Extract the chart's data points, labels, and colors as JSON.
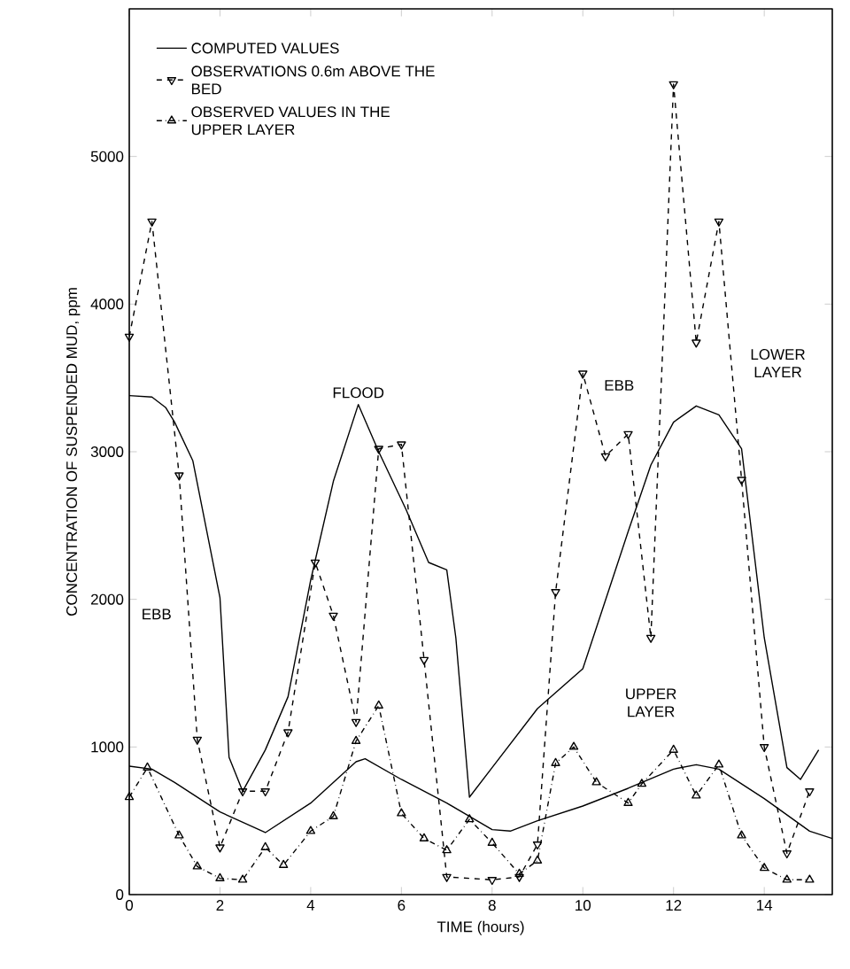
{
  "chart_data": {
    "type": "line",
    "xlabel": "TIME (hours)",
    "ylabel": "CONCENTRATION OF SUSPENDED MUD, ppm",
    "xlim": [
      0,
      15.5
    ],
    "ylim": [
      0,
      6000
    ],
    "xticks": [
      0,
      2,
      4,
      6,
      8,
      10,
      12,
      14
    ],
    "yticks": [
      0,
      1000,
      2000,
      3000,
      4000,
      5000
    ],
    "grid": false,
    "legend": "top left",
    "series": [
      {
        "name": "COMPUTED VALUES",
        "color": "#000000",
        "line_style": "solid",
        "marker": "none",
        "x": [
          0,
          0.5,
          0.8,
          1,
          1.4,
          2,
          2.2,
          2.5,
          3,
          3.5,
          4,
          4.5,
          5.05,
          5.5,
          6.1,
          6.6,
          7,
          7.2,
          7.5,
          8,
          9,
          10,
          11,
          11.5,
          12,
          12.5,
          13,
          13.5,
          14,
          14.5,
          14.8,
          15.2
        ],
        "values": [
          3380,
          3370,
          3300,
          3200,
          2940,
          2010,
          930,
          700,
          980,
          1340,
          2130,
          2800,
          3320,
          3000,
          2610,
          2250,
          2200,
          1740,
          660,
          860,
          1260,
          1530,
          2460,
          2910,
          3200,
          3310,
          3250,
          3020,
          1740,
          860,
          780,
          980
        ]
      },
      {
        "color": "#000000",
        "line_style": "solid",
        "marker": "none",
        "x": [
          0,
          0.5,
          1,
          2,
          3,
          4,
          5,
          5.2,
          6,
          7,
          7.5,
          8,
          8.4,
          9,
          10,
          11,
          12,
          12.5,
          13,
          14,
          15,
          15.5
        ],
        "values": [
          870,
          850,
          760,
          560,
          420,
          620,
          900,
          920,
          780,
          620,
          530,
          440,
          430,
          500,
          600,
          720,
          850,
          880,
          850,
          650,
          430,
          380
        ]
      },
      {
        "name": "OBSERVATIONS 0.6m ABOVE THE BED",
        "color": "#000000",
        "line_style": "dashed",
        "marker": "triangle down",
        "x": [
          0,
          0.5,
          1.1,
          1.5,
          2,
          2.5,
          3,
          3.5,
          4.1,
          4.5,
          5,
          5.5,
          6,
          6.5,
          7,
          8,
          8.6,
          9,
          9.4,
          10,
          10.5,
          11,
          11.5,
          12,
          12.5,
          13,
          13.5,
          14,
          14.5,
          15
        ],
        "values": [
          3780,
          4560,
          2840,
          1050,
          320,
          700,
          700,
          1100,
          2250,
          1890,
          1170,
          3020,
          3050,
          1590,
          120,
          100,
          120,
          340,
          2050,
          3530,
          2970,
          3120,
          1740,
          5490,
          3740,
          4560,
          2810,
          1000,
          280,
          700
        ]
      },
      {
        "name": "OBSERVED VALUES IN THE UPPER LAYER",
        "color": "#000000",
        "line_style": "dotted",
        "marker": "triangle",
        "x": [
          0,
          0.4,
          1.1,
          1.5,
          2,
          2.5,
          3,
          3.4,
          4,
          4.5,
          5,
          5.5,
          6,
          6.5,
          7,
          7.5,
          8,
          8.6,
          9,
          9.4,
          9.8,
          10.3,
          11,
          11.3,
          12,
          12.5,
          13,
          13.5,
          14,
          14.5,
          15
        ],
        "values": [
          660,
          860,
          400,
          190,
          110,
          100,
          320,
          200,
          430,
          530,
          1040,
          1280,
          550,
          380,
          300,
          510,
          350,
          140,
          230,
          890,
          1000,
          760,
          620,
          750,
          980,
          670,
          880,
          400,
          180,
          100,
          100
        ]
      }
    ],
    "annotations": [
      "FLOOD",
      "EBB",
      "EBB",
      {
        "text": "LOWER LAYER",
        "x": 14.3,
        "y": 3600
      },
      {
        "text": "UPPER LAYER",
        "x": 11.5,
        "y": 1300
      }
    ]
  }
}
